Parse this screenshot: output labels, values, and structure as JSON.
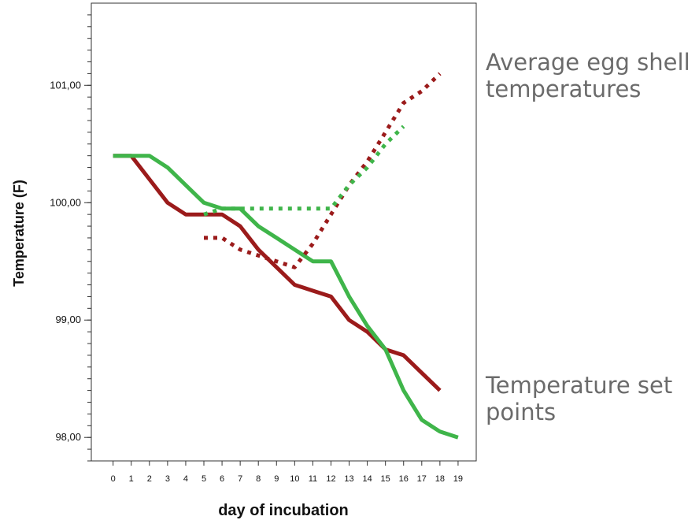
{
  "chart_data": {
    "type": "line",
    "title": "",
    "xlabel": "day of incubation",
    "ylabel": "Temperature (F)",
    "x_ticks": [
      0,
      1,
      2,
      3,
      4,
      5,
      6,
      7,
      8,
      9,
      10,
      11,
      12,
      13,
      14,
      15,
      16,
      17,
      18,
      19
    ],
    "y_ticks": [
      {
        "value": 98.0,
        "label": "98,00"
      },
      {
        "value": 99.0,
        "label": "99,00"
      },
      {
        "value": 100.0,
        "label": "100,00"
      },
      {
        "value": 101.0,
        "label": "101,00"
      }
    ],
    "xlim": [
      -1.2,
      20
    ],
    "ylim": [
      97.8,
      101.7
    ],
    "grid": false,
    "series": [
      {
        "color": "#9b1b1b",
        "style": "solid",
        "points": [
          [
            0,
            100.4
          ],
          [
            1,
            100.4
          ],
          [
            2,
            100.2
          ],
          [
            3,
            100.0
          ],
          [
            4,
            99.9
          ],
          [
            5,
            99.9
          ],
          [
            6,
            99.9
          ],
          [
            7,
            99.8
          ],
          [
            8,
            99.6
          ],
          [
            9,
            99.45
          ],
          [
            10,
            99.3
          ],
          [
            11,
            99.25
          ],
          [
            12,
            99.2
          ],
          [
            13,
            99.0
          ],
          [
            14,
            98.9
          ],
          [
            15,
            98.75
          ],
          [
            16,
            98.7
          ],
          [
            17,
            98.55
          ],
          [
            18,
            98.4
          ]
        ]
      },
      {
        "color": "#3fb54a",
        "style": "solid",
        "points": [
          [
            0,
            100.4
          ],
          [
            1,
            100.4
          ],
          [
            2,
            100.4
          ],
          [
            3,
            100.3
          ],
          [
            4,
            100.15
          ],
          [
            5,
            100.0
          ],
          [
            6,
            99.95
          ],
          [
            7,
            99.95
          ],
          [
            8,
            99.8
          ],
          [
            9,
            99.7
          ],
          [
            10,
            99.6
          ],
          [
            11,
            99.5
          ],
          [
            12,
            99.5
          ],
          [
            13,
            99.2
          ],
          [
            14,
            98.95
          ],
          [
            15,
            98.75
          ],
          [
            16,
            98.4
          ],
          [
            17,
            98.15
          ],
          [
            18,
            98.05
          ],
          [
            19,
            98.0
          ]
        ]
      },
      {
        "color": "#9b1b1b",
        "style": "dotted",
        "points": [
          [
            5,
            99.7
          ],
          [
            6,
            99.7
          ],
          [
            7,
            99.6
          ],
          [
            8,
            99.55
          ],
          [
            9,
            99.5
          ],
          [
            10,
            99.45
          ],
          [
            11,
            99.65
          ],
          [
            12,
            99.9
          ],
          [
            13,
            100.15
          ],
          [
            14,
            100.35
          ],
          [
            15,
            100.6
          ],
          [
            16,
            100.85
          ],
          [
            17,
            100.95
          ],
          [
            18,
            101.1
          ]
        ]
      },
      {
        "color": "#3fb54a",
        "style": "dotted",
        "points": [
          [
            5,
            99.9
          ],
          [
            6,
            99.95
          ],
          [
            7,
            99.95
          ],
          [
            8,
            99.95
          ],
          [
            9,
            99.95
          ],
          [
            10,
            99.95
          ],
          [
            11,
            99.95
          ],
          [
            12,
            99.95
          ],
          [
            13,
            100.15
          ],
          [
            14,
            100.3
          ],
          [
            15,
            100.5
          ],
          [
            16,
            100.65
          ]
        ]
      }
    ],
    "annotations": [
      {
        "text": "Average egg shell\ntemperatures"
      },
      {
        "text": "Temperature set\npoints"
      }
    ]
  }
}
